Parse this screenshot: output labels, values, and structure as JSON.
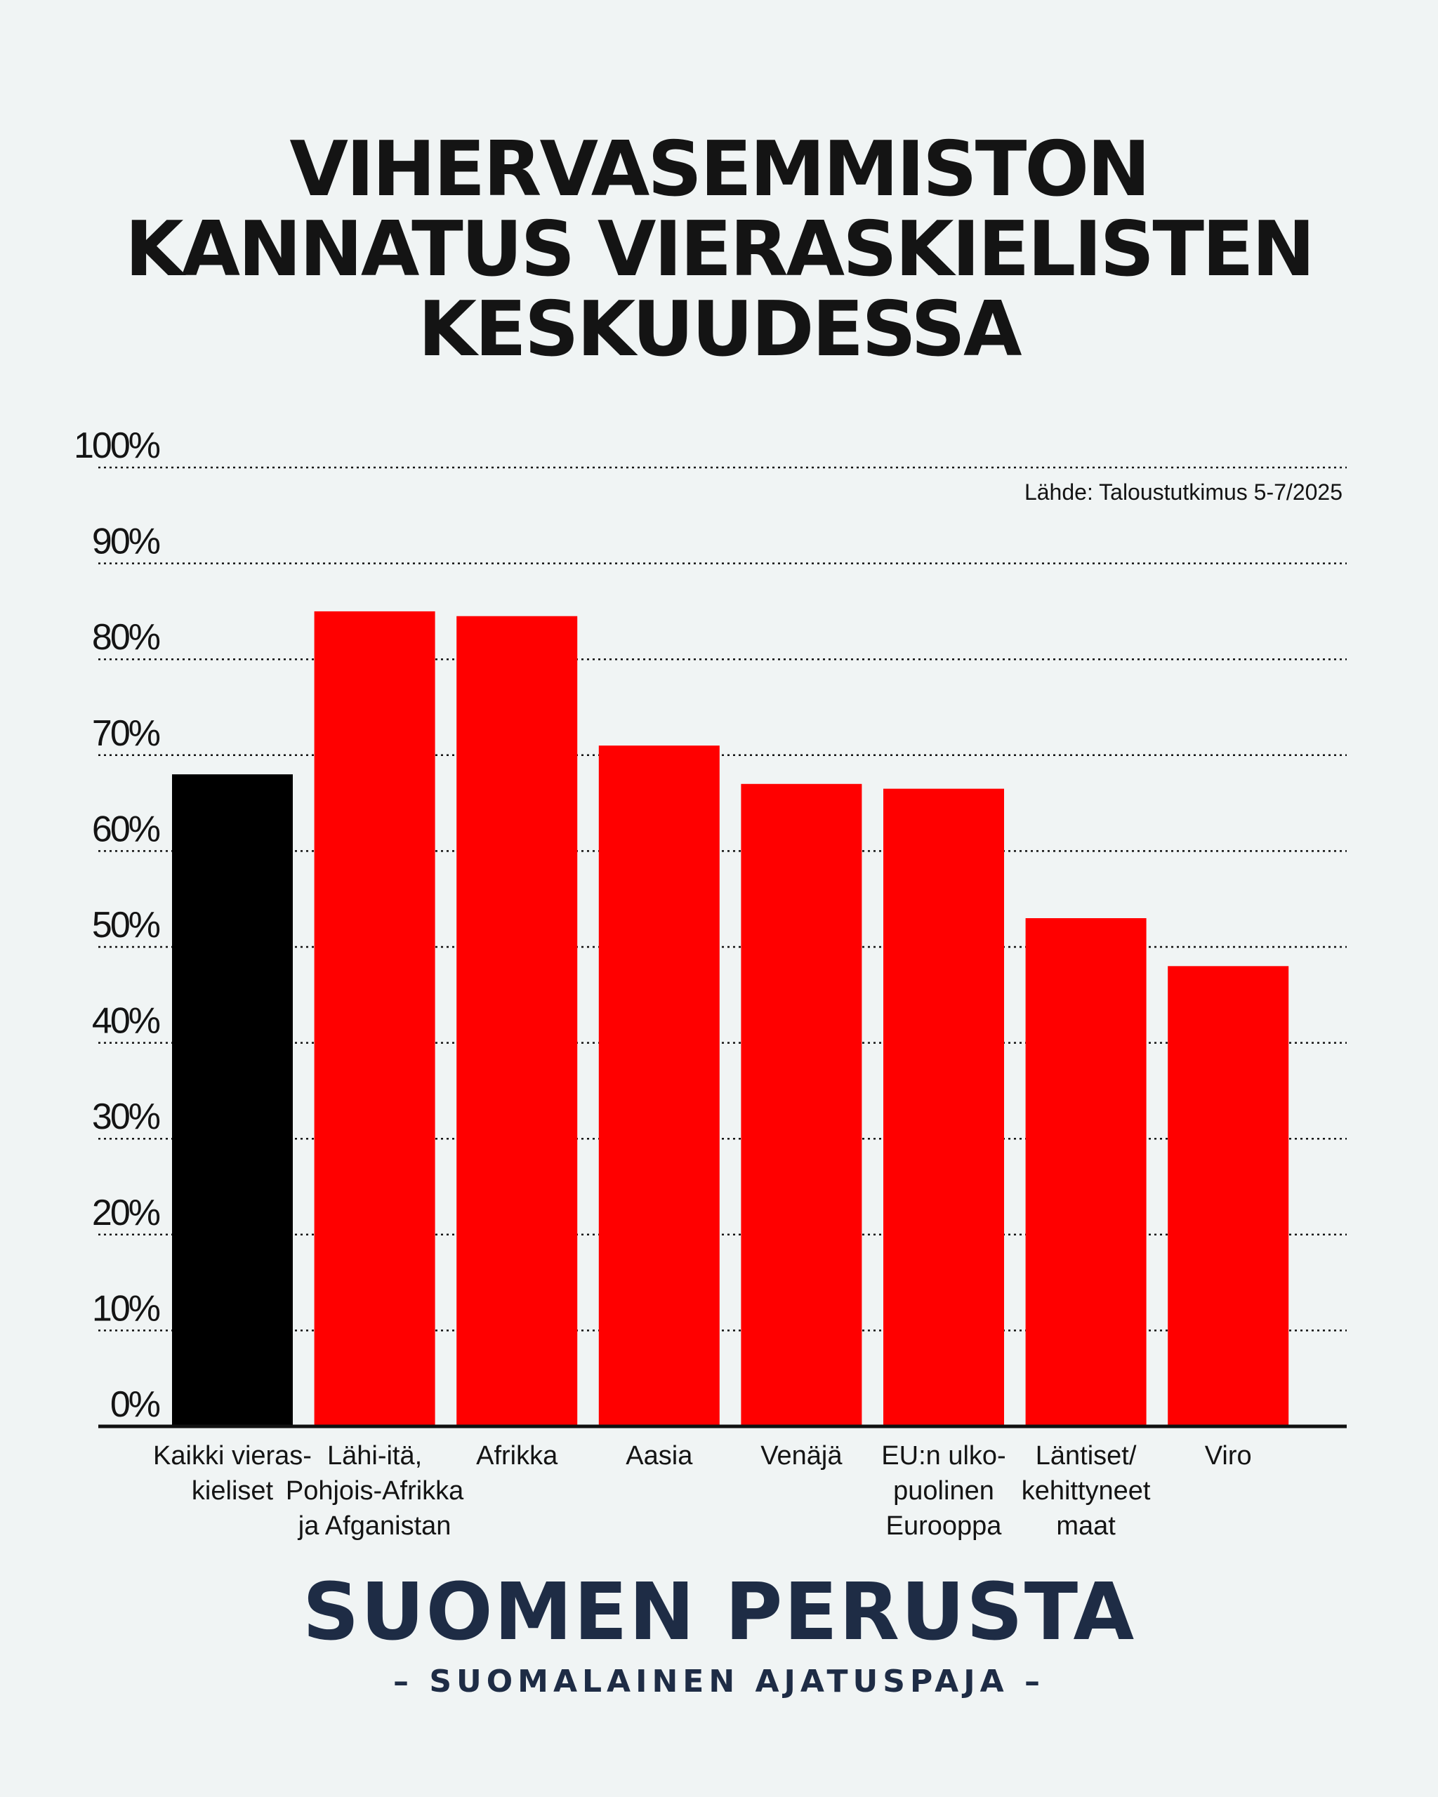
{
  "title_lines": [
    "VIHERVASEMMISTON",
    "KANNATUS VIERASKIELISTEN",
    "KESKUUDESSA"
  ],
  "source": "Lähde: Taloustutkimus 5-7/2025",
  "brand": {
    "name": "SUOMEN PERUSTA",
    "tagline": "– SUOMALAINEN AJATUSPAJA –"
  },
  "colors": {
    "highlight": "#000000",
    "bars": "#ff0000",
    "brand": "#1e2c45",
    "background": "#f0f4f4"
  },
  "chart_data": {
    "type": "bar",
    "title": "VIHERVASEMMISTON KANNATUS VIERASKIELISTEN KESKUUDESSA",
    "categories": [
      "Kaikki vieras-\nkieliset",
      "Lähi-itä,\nPohjois-Afrikka\nja Afganistan",
      "Afrikka",
      "Aasia",
      "Venäjä",
      "EU:n ulko-\npuolinen\nEurooppa",
      "Läntiset/\nkehittyneet\nmaat",
      "Viro"
    ],
    "values": [
      68,
      85,
      84.5,
      71,
      67,
      66.5,
      53,
      48
    ],
    "bar_colors": [
      "#000000",
      "#ff0000",
      "#ff0000",
      "#ff0000",
      "#ff0000",
      "#ff0000",
      "#ff0000",
      "#ff0000"
    ],
    "ylim": [
      0,
      100
    ],
    "yticks": [
      0,
      10,
      20,
      30,
      40,
      50,
      60,
      70,
      80,
      90,
      100
    ],
    "ytick_labels": [
      "0%",
      "10%",
      "20%",
      "30%",
      "40%",
      "50%",
      "60%",
      "70%",
      "80%",
      "90%",
      "100%"
    ],
    "xlabel": "",
    "ylabel": "",
    "grid": "dotted horizontal",
    "legend": "none"
  }
}
